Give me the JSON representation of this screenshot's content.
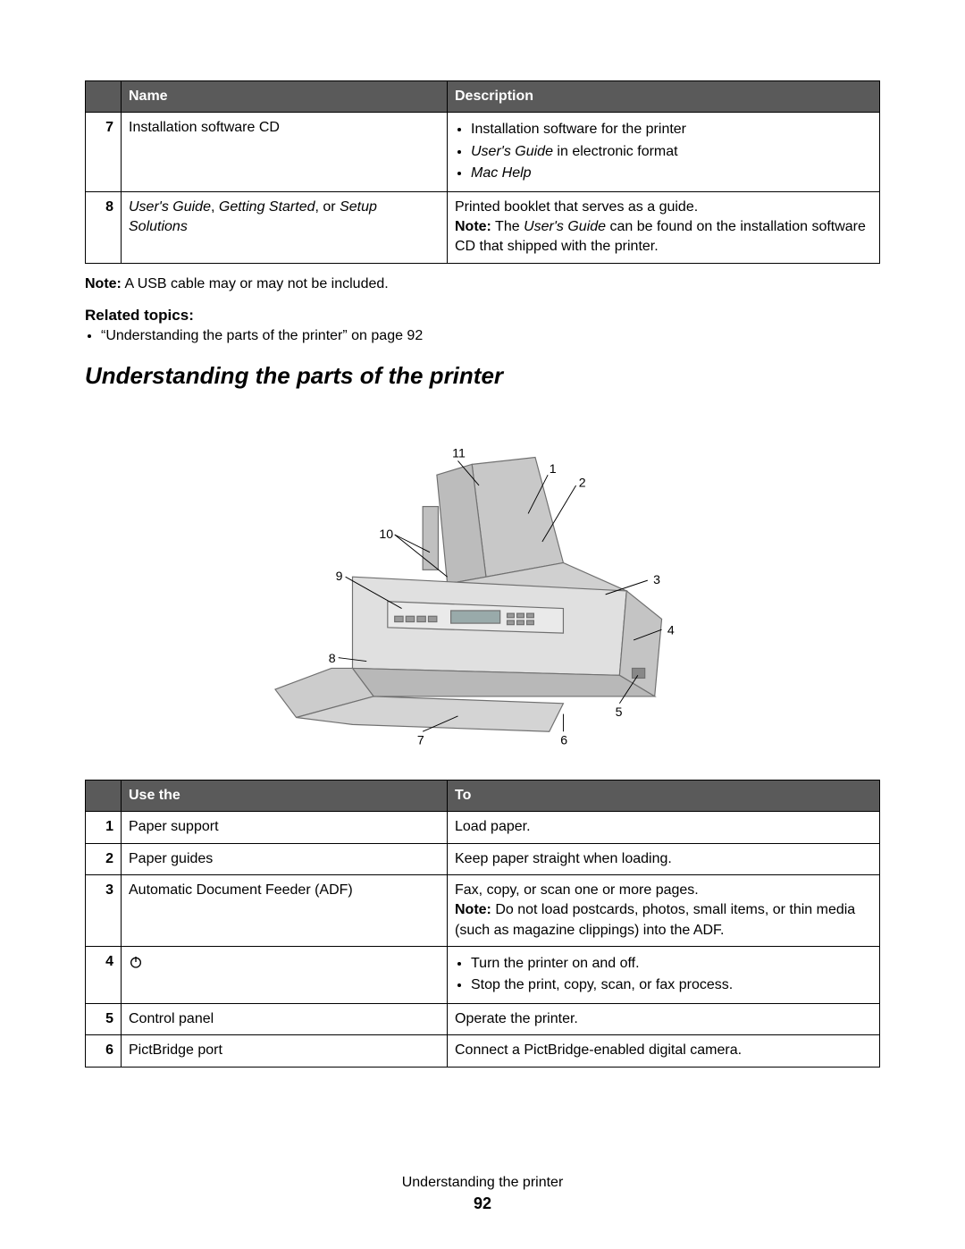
{
  "table1": {
    "headers": [
      "",
      "Name",
      "Description"
    ],
    "rows": [
      {
        "num": "7",
        "name": "Installation software CD",
        "desc_items": [
          "Installation software for the printer",
          "User's Guide in electronic format",
          "Mac Help"
        ],
        "desc_italic_idx": [
          1,
          2
        ],
        "desc_partial_italic_html": [
          "",
          "<span class=\"italic\">User's Guide</span> in electronic format",
          "<span class=\"italic\">Mac Help</span>"
        ]
      },
      {
        "num": "8",
        "name_html": "<span class=\"italic\">User's Guide</span>, <span class=\"italic\">Getting Started</span>, or <span class=\"italic\">Setup Solutions</span>",
        "desc_line1": "Printed booklet that serves as a guide.",
        "desc_line2_html": "<span class=\"bold\">Note:</span> The <span class=\"italic\">User's Guide</span> can be found on the installation software CD that shipped with the printer."
      }
    ]
  },
  "note_below": "A USB cable may or may not be included.",
  "note_prefix": "Note:",
  "related_heading": "Related topics:",
  "related_item": "“Understanding the parts of the printer” on page 92",
  "section_heading": "Understanding the parts of the printer",
  "diagram_labels": [
    "1",
    "2",
    "3",
    "4",
    "5",
    "6",
    "7",
    "8",
    "9",
    "10",
    "11"
  ],
  "table2": {
    "headers": [
      "",
      "Use the",
      "To"
    ],
    "rows": [
      {
        "num": "1",
        "name": "Paper support",
        "to": "Load paper."
      },
      {
        "num": "2",
        "name": "Paper guides",
        "to": "Keep paper straight when loading."
      },
      {
        "num": "3",
        "name": "Automatic Document Feeder (ADF)",
        "to_line1": "Fax, copy, or scan one or more pages.",
        "to_line2_html": "<span class=\"bold\">Note:</span> Do not load postcards, photos, small items, or thin media (such as magazine clippings) into the ADF."
      },
      {
        "num": "4",
        "name_is_icon": true,
        "to_items": [
          "Turn the printer on and off.",
          "Stop the print, copy, scan, or fax process."
        ]
      },
      {
        "num": "5",
        "name": "Control panel",
        "to": "Operate the printer."
      },
      {
        "num": "6",
        "name": "PictBridge port",
        "to": "Connect a PictBridge-enabled digital camera."
      }
    ]
  },
  "footer_text": "Understanding the printer",
  "page_number": "92",
  "colors": {
    "header_bg": "#5a5a5a",
    "header_fg": "#ffffff",
    "border": "#000000",
    "text": "#000000",
    "diagram_fill": "#d0d0d0",
    "diagram_stroke": "#707070"
  }
}
